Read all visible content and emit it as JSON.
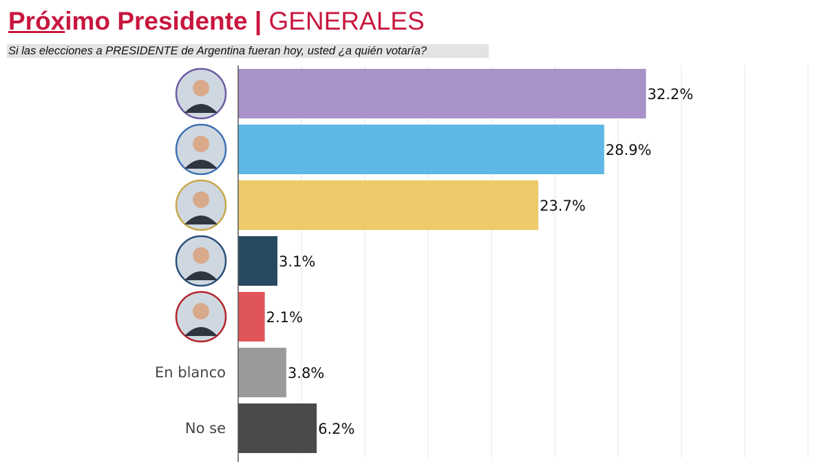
{
  "title": {
    "part1_underlined": "Próx",
    "part1_rest": "imo Presidente",
    "separator": "|",
    "part2": "GENERALES"
  },
  "chart_data": {
    "type": "bar",
    "orientation": "horizontal",
    "title": "Próximo Presidente | GENERALES",
    "subtitle": "Si las elecciones a PRESIDENTE de Argentina fueran hoy, usted ¿a quién votaría?",
    "categories": [
      "",
      "",
      "",
      "",
      "",
      "En blanco",
      "No se"
    ],
    "category_icons": [
      "candidate-photo",
      "candidate-photo",
      "candidate-photo",
      "candidate-photo",
      "candidate-photo",
      null,
      null
    ],
    "values": [
      32.2,
      28.9,
      23.7,
      3.1,
      2.1,
      3.8,
      6.2
    ],
    "data_labels": [
      "32.2%",
      "28.9%",
      "23.7%",
      "3.1%",
      "2.1%",
      "3.8%",
      "6.2%"
    ],
    "colors": [
      "#a992c8",
      "#5fb7e5",
      "#edcb6b",
      "#274a60",
      "#e05557",
      "#9a9a9a",
      "#4a4a4a"
    ],
    "photo_border_colors": [
      "#6a5aa0",
      "#3f6fb5",
      "#c9a74a",
      "#2b4e7a",
      "#b3232a"
    ],
    "xlim": [
      0,
      45
    ],
    "grid": true,
    "grid_step": 5,
    "xlabel": "",
    "ylabel": ""
  }
}
